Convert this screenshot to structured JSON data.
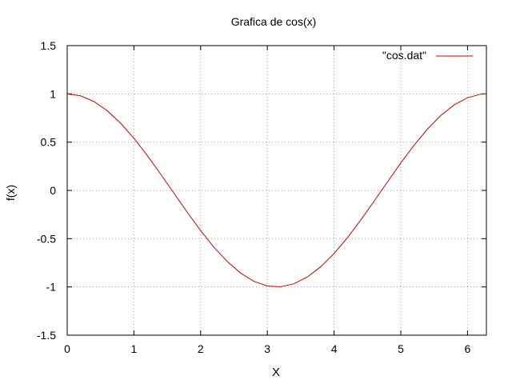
{
  "chart_data": {
    "type": "line",
    "title": "Grafica de cos(x)",
    "xlabel": "X",
    "ylabel": "f(x)",
    "xlim": [
      0,
      6.283185
    ],
    "ylim": [
      -1.5,
      1.5
    ],
    "grid": true,
    "grid_style": "dotted",
    "legend_position": "top-right",
    "x_ticks": [
      0,
      1,
      2,
      3,
      4,
      5,
      6
    ],
    "x_tick_labels": [
      "0",
      "1",
      "2",
      "3",
      "4",
      "5",
      "6"
    ],
    "y_ticks": [
      -1.5,
      -1,
      -0.5,
      0,
      0.5,
      1,
      1.5
    ],
    "y_tick_labels": [
      "-1.5",
      "-1",
      "-0.5",
      "0",
      "0.5",
      "1",
      "1.5"
    ],
    "series": [
      {
        "name": "\"cos.dat\"",
        "color": "#cc0000",
        "x": [
          0,
          0.2,
          0.4,
          0.6,
          0.8,
          1.0,
          1.2,
          1.4,
          1.6,
          1.8,
          2.0,
          2.2,
          2.4,
          2.6,
          2.8,
          3.0,
          3.2,
          3.4,
          3.6,
          3.8,
          4.0,
          4.2,
          4.4,
          4.6,
          4.8,
          5.0,
          5.2,
          5.4,
          5.6,
          5.8,
          6.0,
          6.2,
          6.283
        ],
        "y": [
          1.0,
          0.98,
          0.921,
          0.825,
          0.697,
          0.54,
          0.362,
          0.17,
          -0.029,
          -0.227,
          -0.416,
          -0.589,
          -0.737,
          -0.857,
          -0.942,
          -0.99,
          -0.998,
          -0.967,
          -0.897,
          -0.791,
          -0.654,
          -0.49,
          -0.307,
          -0.112,
          0.087,
          0.284,
          0.469,
          0.635,
          0.776,
          0.886,
          0.96,
          0.997,
          1.0
        ]
      }
    ]
  }
}
